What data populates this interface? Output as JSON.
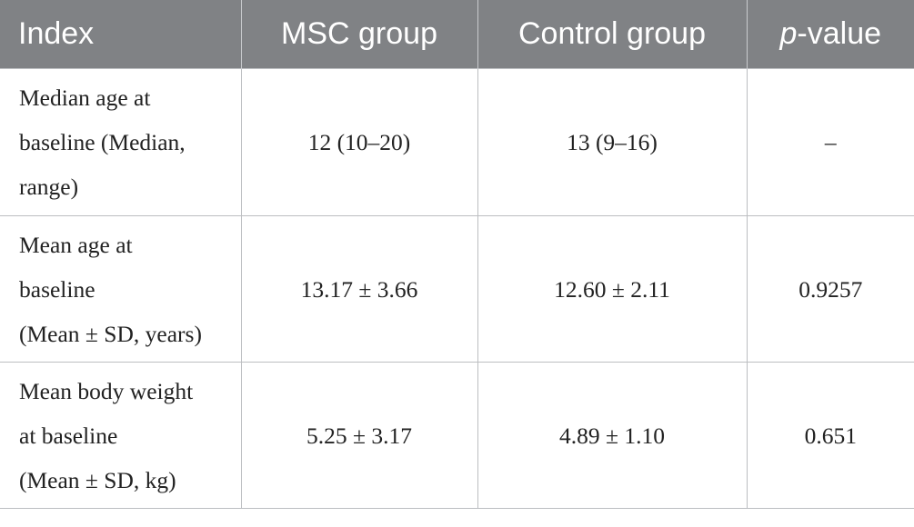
{
  "table": {
    "headers": {
      "index": "Index",
      "msc": "MSC group",
      "control": "Control group",
      "pvalue_italic": "p",
      "pvalue_rest": "-value"
    },
    "rows": [
      {
        "label_lines": [
          "Median age at",
          "baseline (Median,",
          "range)"
        ],
        "msc": "12 (10–20)",
        "control": "13 (9–16)",
        "p": "–"
      },
      {
        "label_lines": [
          "Mean age at",
          "baseline",
          "(Mean ± SD, years)"
        ],
        "msc": "13.17 ± 3.66",
        "control": "12.60 ± 2.11",
        "p": "0.9257"
      },
      {
        "label_lines": [
          "Mean body weight",
          "at baseline",
          "(Mean ± SD, kg)"
        ],
        "msc": "5.25 ± 3.17",
        "control": "4.89 ± 1.10",
        "p": "0.651"
      }
    ]
  },
  "colors": {
    "header_bg": "#808285",
    "header_text": "#ffffff",
    "grid": "#bcbec1"
  }
}
